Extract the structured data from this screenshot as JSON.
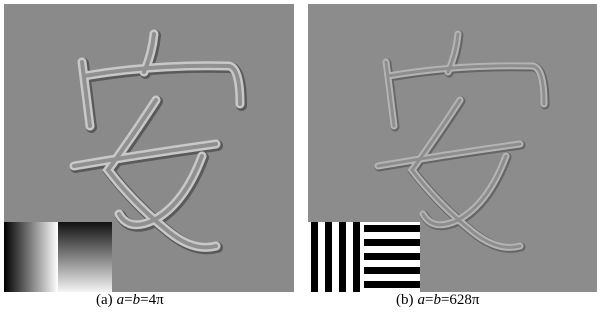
{
  "panels": [
    {
      "caption": [
        "(a)",
        "a",
        "=",
        "b",
        "=4π"
      ]
    },
    {
      "caption": [
        "(b)",
        "a",
        "=",
        "b",
        "=628π"
      ]
    }
  ]
}
